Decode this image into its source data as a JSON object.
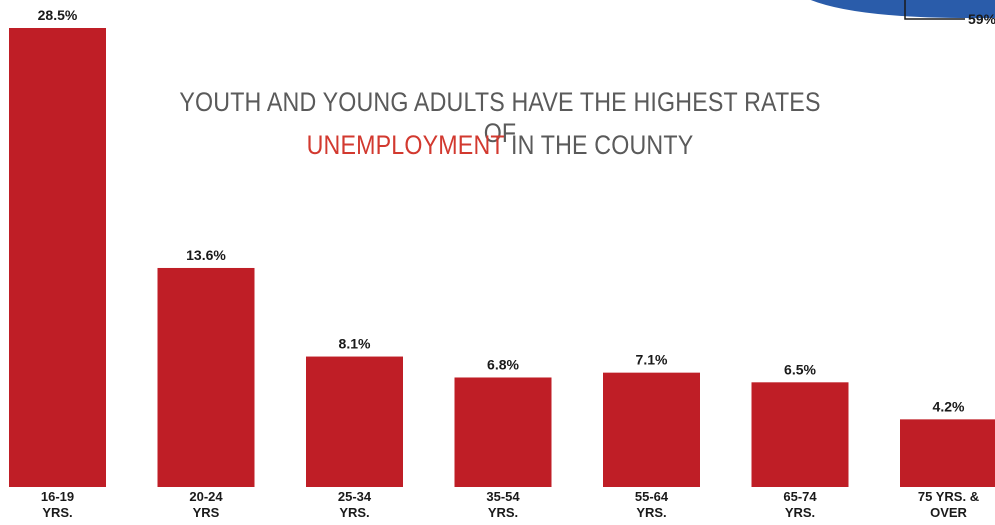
{
  "title": {
    "line1": "YOUTH AND YOUNG ADULTS HAVE THE HIGHEST RATES OF",
    "line2_highlight": "UNEMPLOYMENT",
    "line2_rest": " IN THE COUNTY"
  },
  "colors": {
    "bar": "#bf1e26",
    "highlight": "#d2392f",
    "title": "#5a5a5a",
    "callout_fill": "#2a5caa"
  },
  "callout": {
    "label": "59%"
  },
  "chart_data": {
    "type": "bar",
    "title": "YOUTH AND YOUNG ADULTS HAVE THE HIGHEST RATES OF UNEMPLOYMENT IN THE COUNTY",
    "categories": [
      [
        "16-19",
        "YRS."
      ],
      [
        "20-24",
        "YRS"
      ],
      [
        "25-34",
        "YRS."
      ],
      [
        "35-54",
        "YRS."
      ],
      [
        "55-64",
        "YRS."
      ],
      [
        "65-74",
        "YRS."
      ],
      [
        "75 YRS. &",
        "OVER"
      ]
    ],
    "values": [
      28.5,
      13.6,
      8.1,
      6.8,
      7.1,
      6.5,
      4.2
    ],
    "value_labels": [
      "28.5%",
      "13.6%",
      "8.1%",
      "6.8%",
      "7.1%",
      "6.5%",
      "4.2%"
    ],
    "xlabel": "",
    "ylabel": "",
    "ylim": [
      0,
      28.5
    ],
    "grid": false,
    "legend": "none"
  }
}
